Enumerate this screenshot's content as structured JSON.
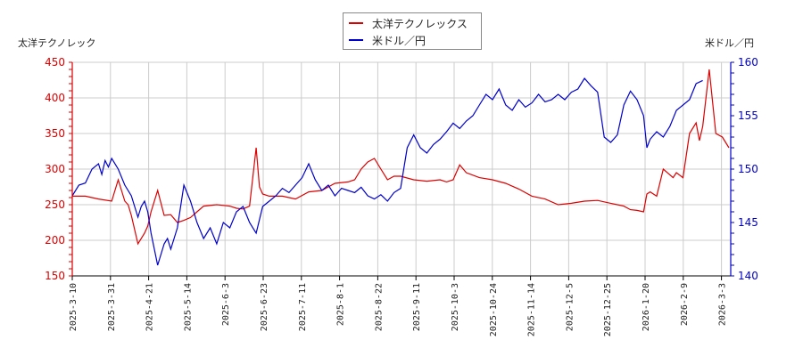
{
  "legend": {
    "items": [
      {
        "label": "太洋テクノレックス",
        "color": "#dd0000"
      },
      {
        "label": "米ドル／円",
        "color": "#0000cc"
      }
    ]
  },
  "axes": {
    "left_title": "太洋テクノレック",
    "right_title": "米ドル／円"
  },
  "chart_data": {
    "type": "line",
    "title": "",
    "xlabel": "",
    "ylabel_left": "太洋テクノレック",
    "ylabel_right": "米ドル／円",
    "ylim_left": [
      150,
      450
    ],
    "ylim_right": [
      140,
      160
    ],
    "yticks_left": [
      150,
      200,
      250,
      300,
      350,
      400,
      450
    ],
    "yticks_right": [
      140,
      145,
      150,
      155,
      160
    ],
    "x_tick_labels": [
      "2025-3-10",
      "2025-3-31",
      "2025-4-21",
      "2025-5-14",
      "2025-6-3",
      "2025-6-23",
      "2025-7-11",
      "2025-8-1",
      "2025-8-22",
      "2025-9-11",
      "2025-10-3",
      "2025-10-24",
      "2025-11-14",
      "2025-12-5",
      "2025-12-25",
      "2026-1-20",
      "2026-2-9",
      "2026-3-3"
    ],
    "grid": true,
    "legend_position": "top-center",
    "series": [
      {
        "name": "太洋テクノレックス",
        "axis": "left",
        "color": "#dd0000",
        "points_x_frac": [
          0,
          0.02,
          0.04,
          0.06,
          0.07,
          0.08,
          0.085,
          0.09,
          0.1,
          0.11,
          0.115,
          0.12,
          0.13,
          0.14,
          0.15,
          0.16,
          0.17,
          0.18,
          0.19,
          0.2,
          0.22,
          0.24,
          0.25,
          0.26,
          0.27,
          0.28,
          0.285,
          0.29,
          0.3,
          0.32,
          0.34,
          0.36,
          0.38,
          0.39,
          0.4,
          0.42,
          0.43,
          0.44,
          0.45,
          0.46,
          0.47,
          0.48,
          0.49,
          0.5,
          0.52,
          0.54,
          0.56,
          0.57,
          0.58,
          0.59,
          0.6,
          0.62,
          0.64,
          0.66,
          0.68,
          0.7,
          0.72,
          0.74,
          0.76,
          0.78,
          0.8,
          0.82,
          0.83,
          0.84,
          0.85,
          0.86,
          0.87,
          0.875,
          0.88,
          0.89,
          0.9,
          0.91,
          0.915,
          0.92,
          0.93,
          0.94,
          0.95,
          0.955,
          0.96,
          0.97,
          0.98,
          0.99,
          1.0
        ],
        "values": [
          262,
          262,
          258,
          255,
          285,
          255,
          250,
          235,
          195,
          210,
          220,
          240,
          270,
          235,
          236,
          225,
          228,
          232,
          240,
          248,
          250,
          248,
          245,
          244,
          248,
          330,
          275,
          265,
          262,
          262,
          258,
          268,
          270,
          275,
          280,
          282,
          285,
          300,
          310,
          315,
          300,
          285,
          290,
          290,
          285,
          283,
          285,
          282,
          285,
          306,
          295,
          288,
          285,
          280,
          272,
          262,
          258,
          250,
          252,
          255,
          256,
          252,
          250,
          248,
          243,
          242,
          240,
          265,
          268,
          262,
          300,
          292,
          288,
          295,
          288,
          350,
          365,
          340,
          360,
          440,
          350,
          345,
          330
        ],
        "comment": "approximate trace read from plot"
      },
      {
        "name": "米ドル／円",
        "axis": "right",
        "color": "#0000cc",
        "comment": "approximate trace read from plot",
        "points_x_frac": [
          0,
          0.01,
          0.02,
          0.03,
          0.04,
          0.045,
          0.05,
          0.055,
          0.06,
          0.07,
          0.08,
          0.09,
          0.1,
          0.105,
          0.11,
          0.115,
          0.12,
          0.13,
          0.14,
          0.145,
          0.15,
          0.16,
          0.17,
          0.18,
          0.19,
          0.2,
          0.21,
          0.22,
          0.23,
          0.24,
          0.25,
          0.26,
          0.27,
          0.28,
          0.29,
          0.3,
          0.31,
          0.32,
          0.33,
          0.34,
          0.35,
          0.36,
          0.37,
          0.38,
          0.39,
          0.4,
          0.41,
          0.42,
          0.43,
          0.44,
          0.45,
          0.46,
          0.47,
          0.48,
          0.49,
          0.5,
          0.51,
          0.52,
          0.53,
          0.54,
          0.55,
          0.56,
          0.57,
          0.58,
          0.59,
          0.6,
          0.61,
          0.62,
          0.63,
          0.64,
          0.65,
          0.66,
          0.67,
          0.68,
          0.69,
          0.7,
          0.71,
          0.72,
          0.73,
          0.74,
          0.75,
          0.76,
          0.77,
          0.78,
          0.79,
          0.8,
          0.81,
          0.82,
          0.83,
          0.84,
          0.85,
          0.86,
          0.87,
          0.875,
          0.88,
          0.89,
          0.9,
          0.91,
          0.92,
          0.93,
          0.94,
          0.95,
          0.96,
          0.97,
          0.98,
          0.99,
          1.0
        ],
        "values": [
          147.5,
          148.5,
          148.7,
          150,
          150.5,
          149.5,
          150.8,
          150.2,
          151,
          150,
          148.5,
          147.5,
          145.5,
          146.5,
          147,
          146,
          144,
          141,
          143,
          143.5,
          142.5,
          144.5,
          148.5,
          147,
          145,
          143.5,
          144.5,
          143,
          145,
          144.5,
          146,
          146.5,
          145,
          144,
          146.5,
          147,
          147.5,
          148.2,
          147.8,
          148.5,
          149.2,
          150.5,
          149,
          148,
          148.5,
          147.5,
          148.2,
          148,
          147.8,
          148.3,
          147.5,
          147.2,
          147.6,
          147,
          147.8,
          148.2,
          152,
          153.2,
          152,
          151.5,
          152.3,
          152.8,
          153.5,
          154.3,
          153.8,
          154.5,
          155,
          156,
          157,
          156.5,
          157.5,
          156,
          155.5,
          156.5,
          155.8,
          156.2,
          157,
          156.3,
          156.5,
          157,
          156.5,
          157.2,
          157.5,
          158.5,
          157.8,
          157.2,
          153,
          152.5,
          153.2,
          156,
          157.3,
          156.5,
          155,
          152,
          152.8,
          153.5,
          153,
          154,
          155.5,
          156,
          156.5,
          158,
          158.3
        ]
      }
    ]
  }
}
